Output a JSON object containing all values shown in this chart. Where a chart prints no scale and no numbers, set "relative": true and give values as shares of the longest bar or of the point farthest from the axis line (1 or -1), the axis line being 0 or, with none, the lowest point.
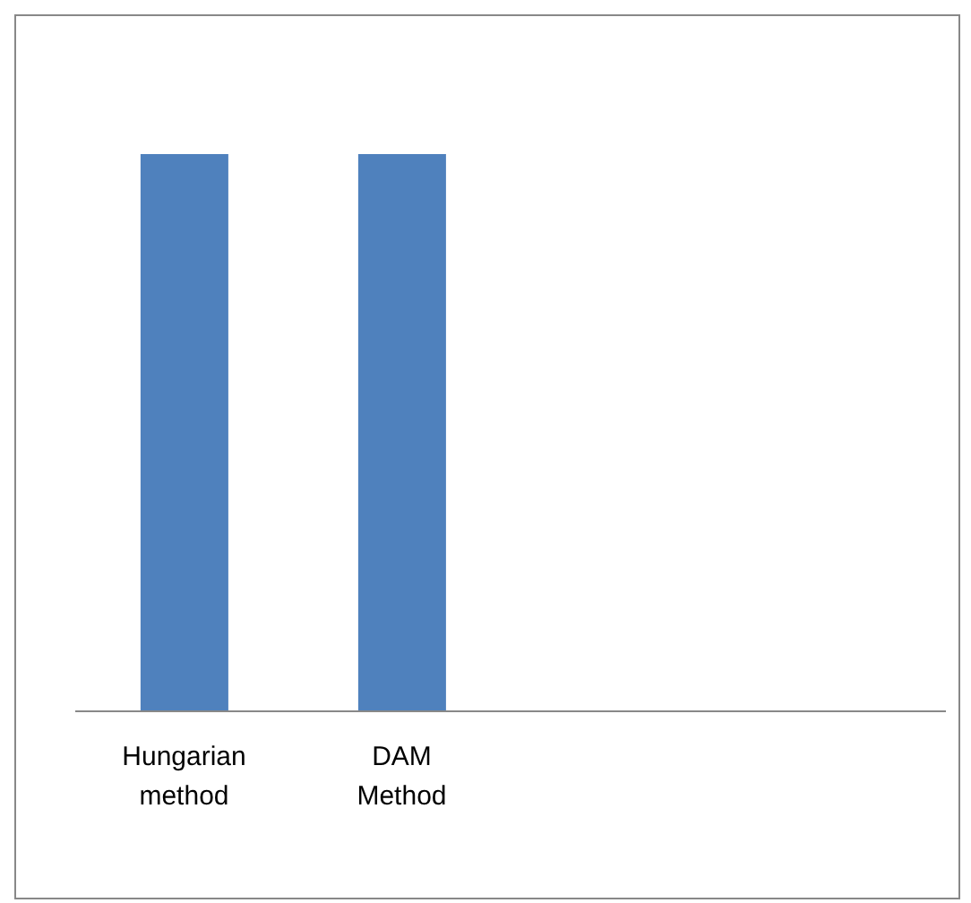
{
  "chart_data": {
    "type": "bar",
    "relative": true,
    "categories": [
      "Hungarian method",
      "DAM Method",
      null,
      null
    ],
    "values": [
      1,
      1,
      null,
      null
    ],
    "color": "#4f81bd",
    "grid": false
  }
}
